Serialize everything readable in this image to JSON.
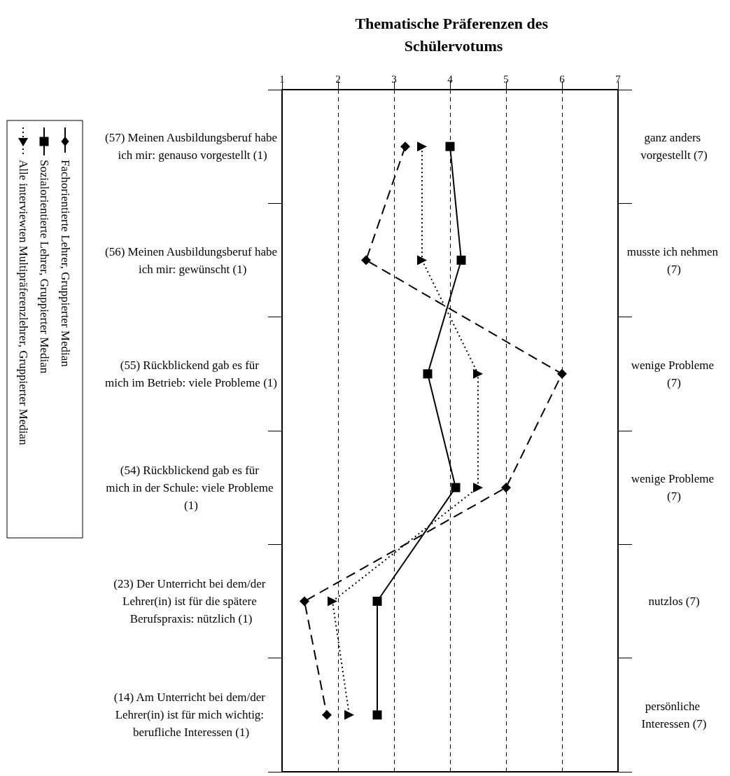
{
  "chart_data": {
    "type": "line",
    "orientation": "horizontal",
    "title": "Thematische Präferenzen des Schülervotums",
    "categories": [
      "(57) Meinen Ausbildungsberuf habe ich mir: genauso vorgestellt (1)",
      "(56) Meinen Ausbildungsberuf habe ich mir: gewünscht (1)",
      "(55) Rückblickend gab es für mich im Betrieb: viele Probleme (1)",
      "(54) Rückblickend gab es für mich in der Schule: viele Probleme (1)",
      "(23) Der Unterricht bei dem/der Lehrer(in) ist für die spätere Berufspraxis: nützlich (1)",
      "(14) Am Unterricht bei dem/der Lehrer(in) ist für mich wichtig: berufliche Interessen (1)"
    ],
    "y2_categories": [
      "ganz anders vorgestellt (7)",
      "musste ich nehmen (7)",
      "wenige Probleme (7)",
      "wenige Probleme (7)",
      "nutzlos (7)",
      "persönliche Interessen (7)"
    ],
    "series": [
      {
        "name": "Fachorientierte Lehrer, Gruppierter Median",
        "color": "#000000",
        "marker": "diamond",
        "line_style": "dashed",
        "values": [
          3.2,
          2.5,
          6.0,
          5.0,
          1.4,
          1.8
        ]
      },
      {
        "name": "Sozialorientierte Lehrer, Gruppierter Median",
        "color": "#000000",
        "marker": "square",
        "line_style": "solid",
        "values": [
          4.0,
          4.2,
          3.6,
          4.1,
          2.7,
          2.7
        ]
      },
      {
        "name": "Alle interviewten Multipräferenzlehrer, Gruppierter Median",
        "color": "#000000",
        "marker": "triangle",
        "line_style": "dotted",
        "values": [
          3.5,
          3.5,
          4.5,
          4.5,
          1.9,
          2.2
        ]
      }
    ],
    "xlim": [
      1,
      7
    ],
    "xticks": [
      1,
      2,
      3,
      4,
      5,
      6,
      7
    ],
    "grid": "x",
    "legend": "left"
  }
}
